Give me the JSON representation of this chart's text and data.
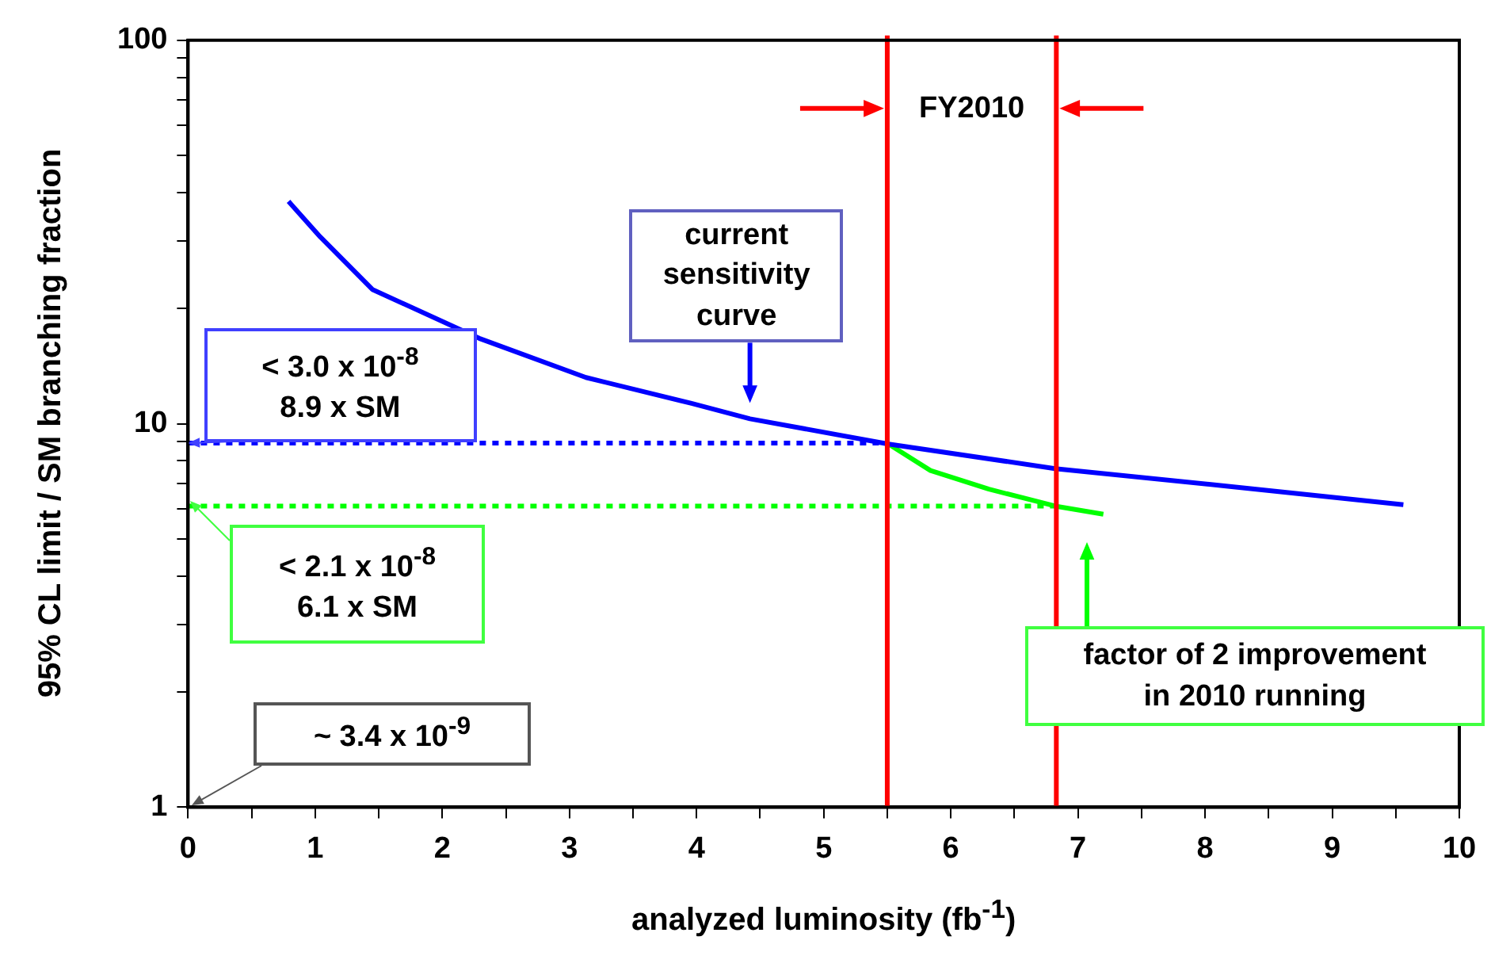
{
  "chart_data": {
    "type": "line",
    "xlabel": "analyzed luminosity (fb$^{-1}$)",
    "ylabel": "95% CL limit / SM branching fraction",
    "log": "y",
    "grid": false,
    "legend": false,
    "marker": "none",
    "xlim": [
      0,
      10
    ],
    "xticks": [
      0,
      {
        "value": 0.5,
        "label": null
      },
      1,
      {
        "value": 1.5,
        "label": null
      },
      2,
      {
        "value": 2.5,
        "label": null
      },
      3,
      {
        "value": 3.5,
        "label": null
      },
      4,
      {
        "value": 4.5,
        "label": null
      },
      5,
      {
        "value": 5.5,
        "label": null
      },
      6,
      {
        "value": 6.5,
        "label": null
      },
      7,
      {
        "value": 7.5,
        "label": null
      },
      8,
      {
        "value": 8.5,
        "label": null
      },
      9,
      {
        "value": 9.5,
        "label": null
      },
      10
    ],
    "ylim": [
      1,
      100
    ],
    "yticks": [
      1,
      {
        "value": 2,
        "label": null
      },
      {
        "value": 3,
        "label": null
      },
      {
        "value": 4,
        "label": null
      },
      {
        "value": 5,
        "label": null
      },
      {
        "value": 6,
        "label": null
      },
      {
        "value": 7,
        "label": null
      },
      {
        "value": 8,
        "label": null
      },
      {
        "value": 9,
        "label": null
      },
      10,
      {
        "value": 20,
        "label": null
      },
      {
        "value": 30,
        "label": null
      },
      {
        "value": 40,
        "label": null
      },
      {
        "value": 50,
        "label": null
      },
      {
        "value": 60,
        "label": null
      },
      {
        "value": 70,
        "label": null
      },
      {
        "value": 80,
        "label": null
      },
      {
        "value": 90,
        "label": null
      },
      100
    ],
    "series": [
      {
        "color": "#0000ff",
        "line_style": "dotted",
        "x": [
          0,
          5.5
        ],
        "values": [
          8.9,
          8.9
        ]
      },
      {
        "color": "#00ff00",
        "line_style": "dotted",
        "x": [
          0,
          6.83
        ],
        "values": [
          6.1,
          6.1
        ]
      },
      {
        "color": "#0000ff",
        "line_style": "solid",
        "x": [
          0.79,
          1.04,
          1.45,
          2.29,
          3.13,
          3.96,
          4.42,
          5.51,
          6.82,
          8.18,
          9.56
        ],
        "values": [
          38,
          30.7,
          22.4,
          16.7,
          13.2,
          11.3,
          10.3,
          8.85,
          7.64,
          6.87,
          6.15
        ]
      },
      {
        "color": "#00ff00",
        "line_style": "solid",
        "x": [
          5.51,
          5.84,
          6.3,
          6.82,
          7.2
        ],
        "values": [
          8.85,
          7.55,
          6.75,
          6.1,
          5.81
        ]
      }
    ],
    "ref_lines": [
      {
        "axis": "x",
        "value": 5.5,
        "color": "#ff0000"
      },
      {
        "axis": "x",
        "value": 6.83,
        "color": "#ff0000"
      }
    ],
    "annotations": [
      {
        "text": "< 3.0 x 10$^{-8}$\n8.9 x SM",
        "x": 0,
        "y": 8.9
      },
      "< 2.1 x 10$^{-8}$\n6.1 x SM",
      "~ 3.4 x 10$^{-9}$",
      {
        "text": "current\nsensitivity\ncurve",
        "x": 4.42,
        "y": 10.3
      },
      "factor of 2 improvement\nin 2010 running",
      "FY2010"
    ]
  }
}
